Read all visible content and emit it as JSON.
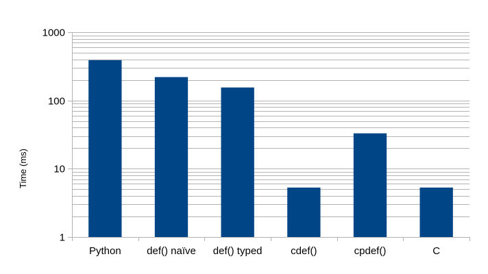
{
  "chart_data": {
    "type": "bar",
    "title": "",
    "xlabel": "",
    "ylabel": "Time (ms)",
    "yscale": "log",
    "ylim": [
      1,
      1000
    ],
    "yticks": [
      1,
      10,
      100,
      1000
    ],
    "ytick_labels": [
      "1",
      "10",
      "100",
      "1000"
    ],
    "grid": true,
    "categories": [
      "Python",
      "def() naïve",
      "def() typed",
      "cdef()",
      "cpdef()",
      "C"
    ],
    "values": [
      390,
      220,
      155,
      5.3,
      33,
      5.3
    ],
    "colors": {
      "bar": "#004586",
      "grid": "#b3b3b3",
      "axis": "#b3b3b3"
    }
  }
}
